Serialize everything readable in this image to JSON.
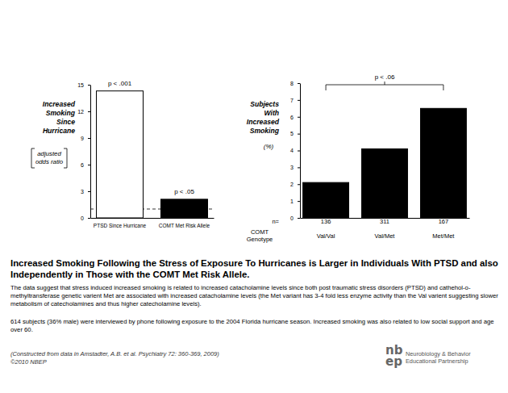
{
  "chart_data": [
    {
      "type": "bar",
      "categories": [
        "PTSD Since Hurricane",
        "COMT Met Risk Allele"
      ],
      "values": [
        14.3,
        2.1
      ],
      "colors": [
        "#ffffff",
        "#000000"
      ],
      "ylim": [
        0,
        15
      ],
      "yticks": [
        0,
        3,
        6,
        9,
        12,
        15
      ],
      "grid": false,
      "y_label": [
        "Increased",
        "Smoking",
        "Since",
        "Hurricane"
      ],
      "y_label_note": [
        "adjusted",
        "odds ratio"
      ],
      "reference_line": {
        "value": 1,
        "line_style": "dashed"
      },
      "annotations": [
        {
          "text": "p < .001",
          "category": "PTSD Since Hurricane"
        },
        {
          "text": "p < .05",
          "category": "COMT Met Risk Allele"
        }
      ]
    },
    {
      "type": "bar",
      "categories": [
        "Val/Val",
        "Val/Met",
        "Met/Met"
      ],
      "values": [
        2.1,
        4.1,
        6.5
      ],
      "color": "#000000",
      "ylim": [
        0,
        8
      ],
      "yticks": [
        0,
        1,
        2,
        3,
        4,
        5,
        6,
        7,
        8
      ],
      "grid": false,
      "y_label": [
        "Subjects",
        "With",
        "Increased",
        "Smoking"
      ],
      "y_unit": "(%)",
      "x_label": [
        "COMT",
        "Genotype"
      ],
      "n_label": "n=",
      "n": [
        136,
        311,
        167
      ],
      "annotations": [
        {
          "text": "p < .06",
          "from": "Val/Val",
          "to": "Met/Met"
        }
      ]
    }
  ],
  "heading": "Increased Smoking Following the Stress of Exposure To Hurricanes is Larger in Individuals With PTSD and also Independently in Those with the COMT Met Risk Allele.",
  "paragraphs": [
    "The data suggest that stress induced increased smoking is related to increased catacholamine levels since both post traumatic stress disorders (PTSD) and cathehol-o-methyltransferase genetic varient Met are associated with increased catacholamine levels (the Met variant has 3-4 fold less enzyme activity than the Val varient suggesting slower metabolism of catecholamines and thus higher catecholamine levels).",
    "614 subjects (36% male) were interviewed by phone following exposure to the 2004 Florida hurricane season. Increased smoking was also related to low social support and age over 60."
  ],
  "source": "(Constructed from data in Amstadter, A.B. et al. Psychiatry 72: 360-369, 2009)",
  "copyright": "©2010 NBEP",
  "logo": {
    "mark": [
      "nb",
      "ep"
    ],
    "name": [
      "Neurobiology & Behavior",
      "Educational Partnership"
    ]
  }
}
